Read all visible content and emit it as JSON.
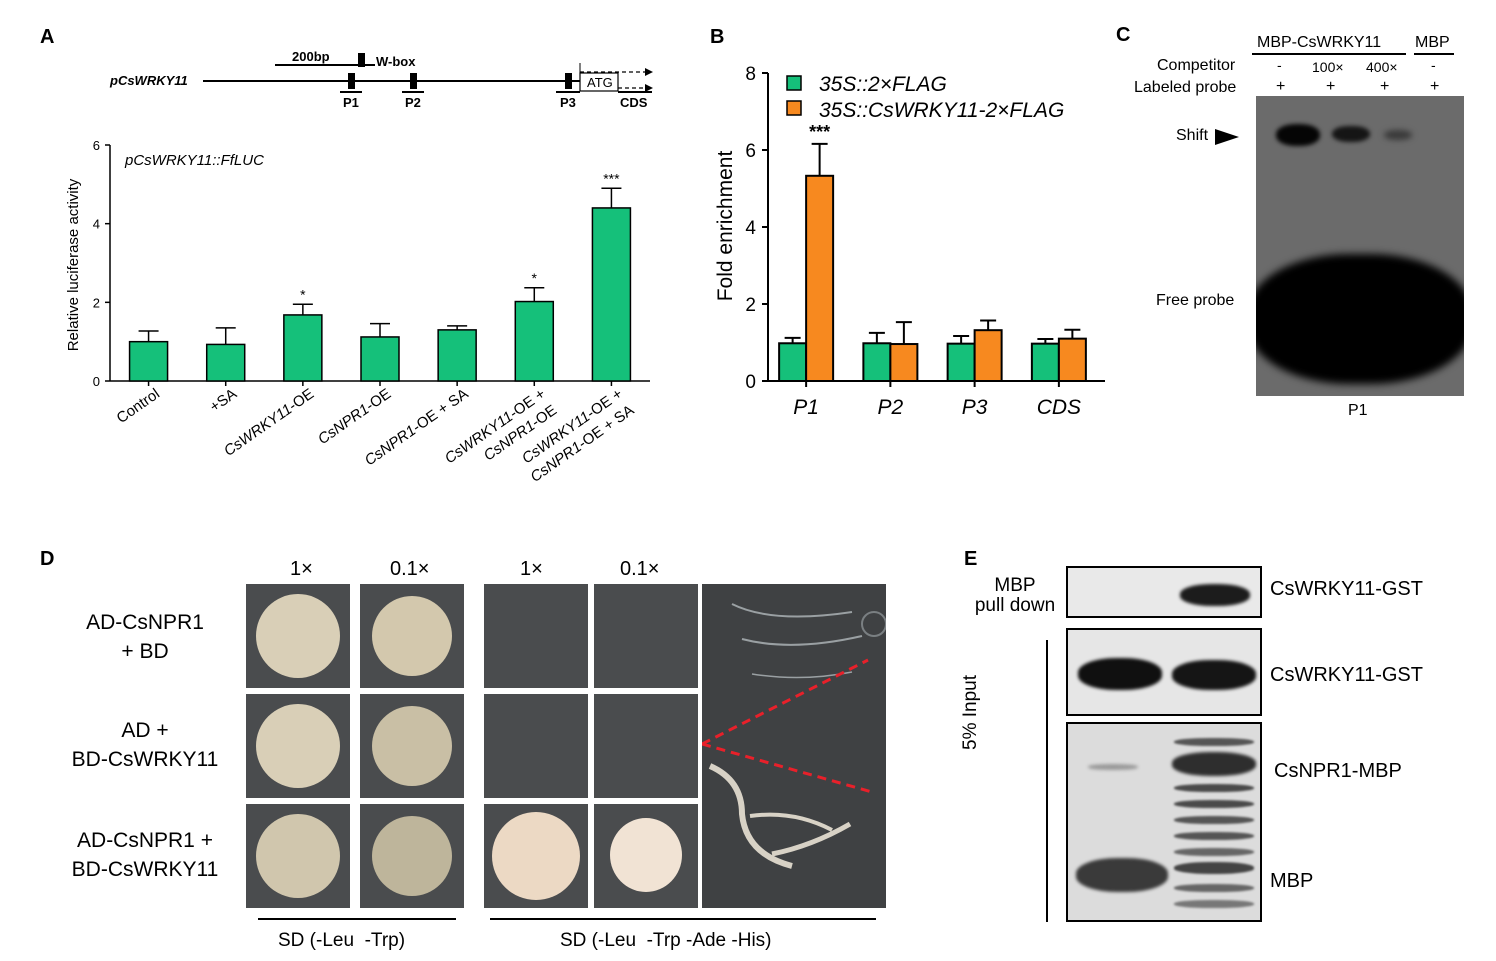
{
  "panels": {
    "a": "A",
    "b": "B",
    "c": "C",
    "d": "D",
    "e": "E"
  },
  "colors": {
    "green": "#15c07a",
    "orange": "#f7891f",
    "edge": "#000000"
  },
  "panel_a": {
    "scale_label": "200bp",
    "wbox_label": "W-box",
    "promoter_label": "pCsWRKY11",
    "atg_label": "ATG",
    "cds_label": "CDS",
    "probes": [
      "P1",
      "P2",
      "P3"
    ]
  },
  "panel_c": {
    "header": "MBP-CsWRKY11",
    "header2": "MBP",
    "competitor_label": "Competitor",
    "competitor": [
      "-",
      "100×",
      "400×",
      "-"
    ],
    "probe_label": "Labeled probe",
    "probe": [
      "+",
      "+",
      "+",
      "+"
    ],
    "shift_label": "Shift",
    "free_label": "Free probe",
    "bottom": "P1"
  },
  "panel_d": {
    "dilutions": [
      "1×",
      "0.1×",
      "1×",
      "0.1×"
    ],
    "rows": [
      {
        "l1": "AD-CsNPR1",
        "l2": "+ BD"
      },
      {
        "l1": "AD +",
        "l2": "BD-CsWRKY11"
      },
      {
        "l1": "AD-CsNPR1 +",
        "l2": "BD-CsWRKY11"
      }
    ],
    "media1": "SD (-Leu  -Trp)",
    "media2": "SD (-Leu  -Trp -Ade -His)"
  },
  "panel_e": {
    "pulldown_l1": "MBP",
    "pulldown_l2": "pull down",
    "input_label": "5% Input",
    "bands": [
      "CsWRKY11-GST",
      "CsWRKY11-GST",
      "CsNPR1-MBP",
      "MBP"
    ]
  },
  "chart_data": [
    {
      "type": "bar",
      "title": "pCsWRKY11::FfLUC",
      "ylabel": "Relative luciferase activity",
      "ylim": [
        0,
        6
      ],
      "yticks": [
        0,
        2,
        4,
        6
      ],
      "categories": [
        "Control",
        "+SA",
        "CsWRKY11-OE",
        "CsNPR1-OE",
        "CsNPR1-OE + SA",
        "CsWRKY11-OE + CsNPR1-OE",
        "CsWRKY11-OE + CsNPR1-OE + SA"
      ],
      "tick_lines": [
        [
          "Control"
        ],
        [
          "+SA"
        ],
        [
          "CsWRKY11-OE"
        ],
        [
          "CsNPR1-OE"
        ],
        [
          "CsNPR1-OE + SA"
        ],
        [
          "CsWRKY11-OE +",
          "CsNPR1-OE"
        ],
        [
          "CsWRKY11-OE +",
          "CsNPR1-OE + SA"
        ]
      ],
      "values": [
        1.0,
        0.93,
        1.68,
        1.12,
        1.3,
        2.02,
        4.4
      ],
      "errors": [
        0.27,
        0.42,
        0.27,
        0.34,
        0.1,
        0.35,
        0.5
      ],
      "significance": [
        "",
        "",
        "*",
        "",
        "",
        "*",
        "***"
      ]
    },
    {
      "type": "bar",
      "ylabel": "Fold enrichment",
      "ylim": [
        0,
        8
      ],
      "yticks": [
        0,
        2,
        4,
        6,
        8
      ],
      "categories": [
        "P1",
        "P2",
        "P3",
        "CDS"
      ],
      "series": [
        {
          "name": "35S::2×FLAG",
          "values": [
            0.98,
            0.98,
            0.97,
            0.97
          ],
          "errors": [
            0.14,
            0.27,
            0.2,
            0.12
          ]
        },
        {
          "name": "35S::CsWRKY11-2×FLAG",
          "values": [
            5.33,
            0.96,
            1.32,
            1.1
          ],
          "errors": [
            0.83,
            0.57,
            0.25,
            0.23
          ]
        }
      ],
      "significance": [
        "***",
        "",
        "",
        ""
      ],
      "legend": "top-left"
    }
  ]
}
